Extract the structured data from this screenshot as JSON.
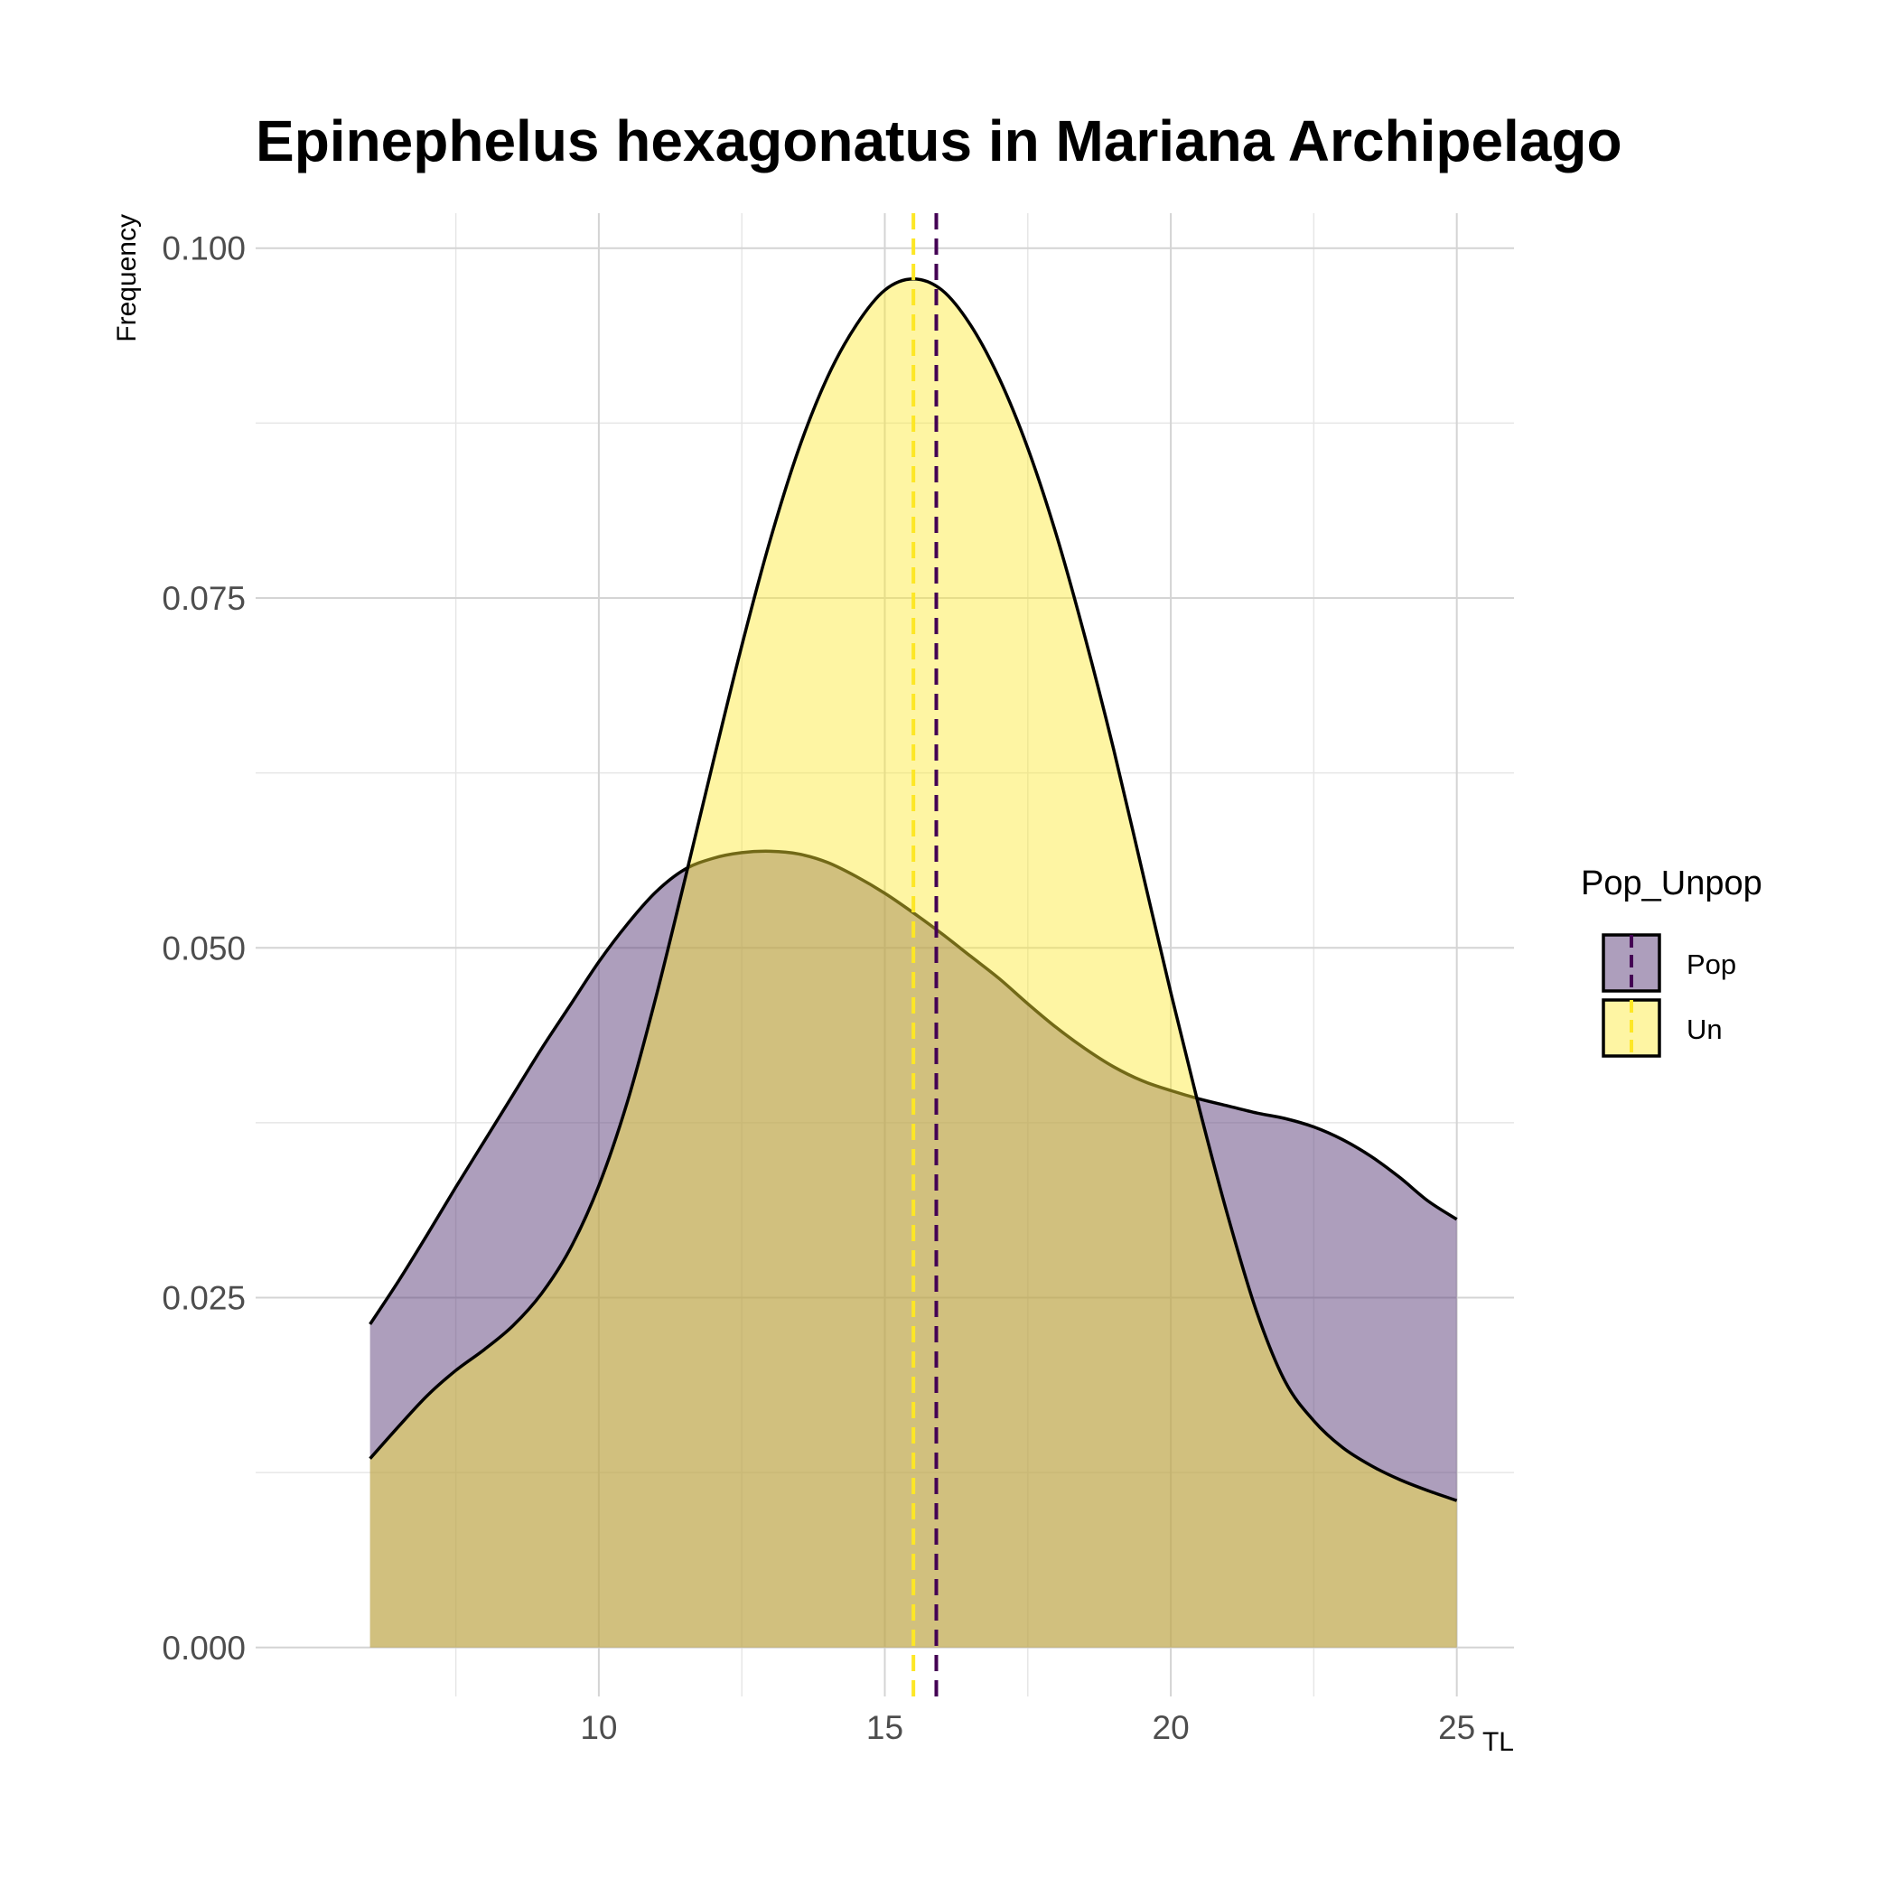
{
  "chart_data": {
    "type": "area",
    "title": "Epinephelus hexagonatus in Mariana Archipelago",
    "xlabel": "TL",
    "ylabel": "Frequency",
    "xlim": [
      4.0,
      26.0
    ],
    "ylim": [
      -0.0035,
      0.1025
    ],
    "x_ticks": [
      10,
      15,
      20,
      25
    ],
    "x_tick_labels": [
      "10",
      "15",
      "20",
      "25"
    ],
    "x_minor_ticks": [
      7.5,
      12.5,
      17.5,
      22.5
    ],
    "y_ticks": [
      0.0,
      0.025,
      0.05,
      0.075,
      0.1
    ],
    "y_tick_labels": [
      "0.000",
      "0.025",
      "0.050",
      "0.075",
      "0.100"
    ],
    "y_minor_ticks": [
      0.0125,
      0.0375,
      0.0625,
      0.0875
    ],
    "grid": true,
    "legend": {
      "title": "Pop_Unpop",
      "position": "right"
    },
    "series": [
      {
        "name": "Pop",
        "color": "#440154",
        "fill": "#5c3d7a",
        "fill_opacity": 0.5,
        "mean_line": 15.9,
        "x": [
          6,
          6.5,
          7,
          7.5,
          8,
          8.5,
          9,
          9.5,
          10,
          10.5,
          11,
          11.5,
          12,
          12.5,
          13,
          13.5,
          14,
          14.5,
          15,
          15.5,
          16,
          16.5,
          17,
          17.5,
          18,
          18.5,
          19,
          19.5,
          20,
          20.5,
          21,
          21.5,
          22,
          22.5,
          23,
          23.5,
          24,
          24.5,
          25
        ],
        "values": [
          0.0231,
          0.0262,
          0.0295,
          0.0329,
          0.0362,
          0.0395,
          0.0428,
          0.0459,
          0.049,
          0.0517,
          0.054,
          0.0556,
          0.0564,
          0.0568,
          0.0569,
          0.0567,
          0.0561,
          0.0551,
          0.0539,
          0.0525,
          0.051,
          0.0494,
          0.0478,
          0.046,
          0.0443,
          0.0428,
          0.0415,
          0.0405,
          0.0398,
          0.0392,
          0.0387,
          0.0382,
          0.0378,
          0.0372,
          0.0363,
          0.0351,
          0.0336,
          0.0319,
          0.0306
        ]
      },
      {
        "name": "Un",
        "color": "#fde725",
        "fill": "#fce833",
        "fill_opacity": 0.45,
        "mean_line": 15.5,
        "x": [
          6,
          6.5,
          7,
          7.5,
          8,
          8.5,
          9,
          9.5,
          10,
          10.5,
          11,
          11.5,
          12,
          12.5,
          13,
          13.5,
          14,
          14.5,
          15,
          15.5,
          16,
          16.5,
          17,
          17.5,
          18,
          18.5,
          19,
          19.5,
          20,
          20.5,
          21,
          21.5,
          22,
          22.5,
          23,
          23.5,
          24,
          24.5,
          25
        ],
        "values": [
          0.0135,
          0.0158,
          0.018,
          0.0198,
          0.0213,
          0.023,
          0.0253,
          0.0285,
          0.033,
          0.039,
          0.0465,
          0.0548,
          0.0633,
          0.0716,
          0.0792,
          0.0857,
          0.0908,
          0.0945,
          0.097,
          0.0978,
          0.097,
          0.0945,
          0.0907,
          0.0857,
          0.0795,
          0.0722,
          0.0642,
          0.0555,
          0.0468,
          0.0385,
          0.0308,
          0.024,
          0.019,
          0.0162,
          0.0143,
          0.013,
          0.012,
          0.0112,
          0.0105
        ]
      }
    ]
  }
}
